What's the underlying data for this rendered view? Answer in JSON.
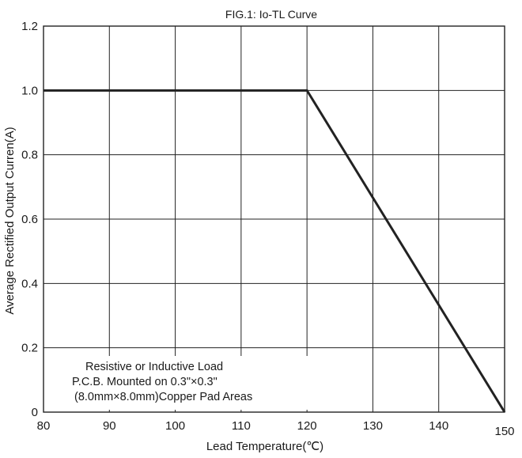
{
  "chart_data": {
    "type": "line",
    "title": "FIG.1: Io-TL Curve",
    "xlabel": "Lead Temperature(℃)",
    "ylabel": "Average Rectified Output Curren(A)",
    "xlim": [
      80,
      150
    ],
    "ylim": [
      0,
      1.2
    ],
    "x_ticks": [
      80,
      90,
      100,
      110,
      120,
      130,
      140,
      150
    ],
    "y_ticks": [
      0,
      0.2,
      0.4,
      0.6,
      0.8,
      1.0,
      1.2
    ],
    "x_tick_labels": [
      "80",
      "90",
      "100",
      "110",
      "120",
      "130",
      "140",
      "150"
    ],
    "y_tick_labels": [
      "0",
      "0.2",
      "0.4",
      "0.6",
      "0.8",
      "1.0",
      "1.2"
    ],
    "grid": true,
    "series": [
      {
        "x": [
          80,
          120,
          150
        ],
        "y": [
          1.0,
          1.0,
          0.0
        ],
        "color": "#222222"
      }
    ],
    "annotation": [
      "Resistive or Inductive Load",
      "P.C.B. Mounted on 0.3\"×0.3\"",
      "(8.0mm×8.0mm)Copper Pad Areas"
    ]
  }
}
